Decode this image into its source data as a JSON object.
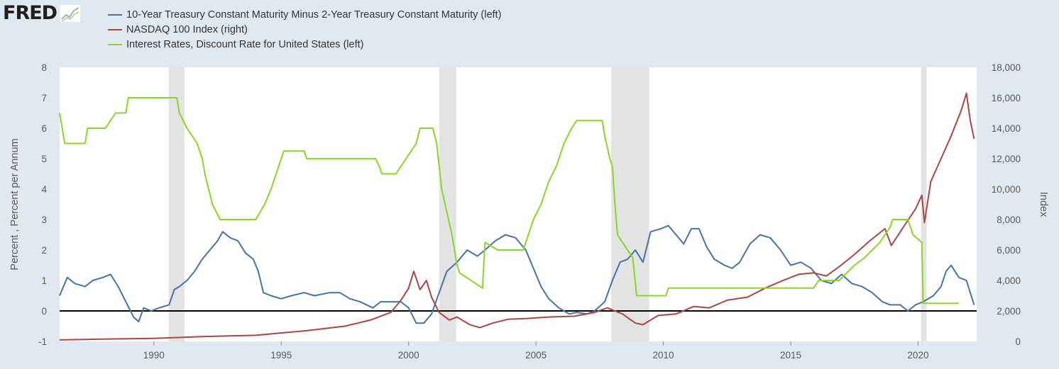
{
  "logo": {
    "text": "FRED",
    "icon": "fred-chart-line-icon"
  },
  "chart_data": {
    "type": "line",
    "title": "",
    "xlabel": "",
    "ylabel": "Percent , Percent per Annum",
    "ylabel_right": "Index",
    "x_range": [
      1986.3,
      2022.3
    ],
    "ylim": [
      -1,
      8
    ],
    "ylim_right": [
      0,
      18000
    ],
    "x_ticks": [
      "1990",
      "1995",
      "2000",
      "2005",
      "2010",
      "2015",
      "2020"
    ],
    "y_ticks": [
      "-1",
      "0",
      "1",
      "2",
      "3",
      "4",
      "5",
      "6",
      "7",
      "8"
    ],
    "y_ticks_right": [
      "0",
      "2,000",
      "4,000",
      "6,000",
      "8,000",
      "10,000",
      "12,000",
      "14,000",
      "16,000",
      "18,000"
    ],
    "zero_line": 0,
    "grid": "horizontal-off, vertical-off",
    "legend_position": "top-left",
    "recessions": [
      [
        1990.58,
        1991.2
      ],
      [
        2001.2,
        2001.87
      ],
      [
        2007.95,
        2009.45
      ],
      [
        2020.12,
        2020.33
      ]
    ],
    "series": [
      {
        "name": "10-Year Treasury Constant Maturity Minus 2-Year Treasury Constant Maturity (left)",
        "axis": "left",
        "color": "#4572a7",
        "points": [
          [
            1986.3,
            0.5
          ],
          [
            1986.6,
            1.1
          ],
          [
            1986.9,
            0.9
          ],
          [
            1987.3,
            0.8
          ],
          [
            1987.6,
            1.0
          ],
          [
            1988.0,
            1.1
          ],
          [
            1988.3,
            1.2
          ],
          [
            1988.6,
            0.8
          ],
          [
            1988.9,
            0.3
          ],
          [
            1989.2,
            -0.2
          ],
          [
            1989.4,
            -0.35
          ],
          [
            1989.6,
            0.1
          ],
          [
            1989.9,
            0.0
          ],
          [
            1990.2,
            0.1
          ],
          [
            1990.6,
            0.2
          ],
          [
            1990.8,
            0.7
          ],
          [
            1991.0,
            0.8
          ],
          [
            1991.3,
            1.0
          ],
          [
            1991.6,
            1.3
          ],
          [
            1991.9,
            1.7
          ],
          [
            1992.2,
            2.0
          ],
          [
            1992.5,
            2.3
          ],
          [
            1992.7,
            2.6
          ],
          [
            1993.0,
            2.4
          ],
          [
            1993.3,
            2.3
          ],
          [
            1993.6,
            1.9
          ],
          [
            1993.9,
            1.7
          ],
          [
            1994.1,
            1.3
          ],
          [
            1994.3,
            0.6
          ],
          [
            1994.6,
            0.5
          ],
          [
            1995.0,
            0.4
          ],
          [
            1995.4,
            0.5
          ],
          [
            1995.9,
            0.6
          ],
          [
            1996.3,
            0.5
          ],
          [
            1996.9,
            0.6
          ],
          [
            1997.3,
            0.6
          ],
          [
            1997.7,
            0.4
          ],
          [
            1998.1,
            0.3
          ],
          [
            1998.6,
            0.1
          ],
          [
            1998.9,
            0.3
          ],
          [
            1999.3,
            0.3
          ],
          [
            1999.7,
            0.3
          ],
          [
            2000.0,
            0.1
          ],
          [
            2000.3,
            -0.4
          ],
          [
            2000.6,
            -0.4
          ],
          [
            2000.9,
            -0.1
          ],
          [
            2001.2,
            0.6
          ],
          [
            2001.5,
            1.3
          ],
          [
            2001.9,
            1.6
          ],
          [
            2002.3,
            2.0
          ],
          [
            2002.7,
            1.8
          ],
          [
            2003.0,
            2.0
          ],
          [
            2003.4,
            2.3
          ],
          [
            2003.8,
            2.5
          ],
          [
            2004.2,
            2.4
          ],
          [
            2004.6,
            2.0
          ],
          [
            2004.9,
            1.4
          ],
          [
            2005.2,
            0.8
          ],
          [
            2005.5,
            0.4
          ],
          [
            2005.9,
            0.1
          ],
          [
            2006.3,
            -0.1
          ],
          [
            2006.6,
            -0.05
          ],
          [
            2007.0,
            -0.1
          ],
          [
            2007.3,
            0.0
          ],
          [
            2007.7,
            0.3
          ],
          [
            2008.0,
            1.0
          ],
          [
            2008.3,
            1.6
          ],
          [
            2008.6,
            1.7
          ],
          [
            2008.9,
            2.0
          ],
          [
            2009.2,
            1.6
          ],
          [
            2009.5,
            2.6
          ],
          [
            2009.9,
            2.7
          ],
          [
            2010.2,
            2.8
          ],
          [
            2010.5,
            2.5
          ],
          [
            2010.8,
            2.2
          ],
          [
            2011.1,
            2.7
          ],
          [
            2011.4,
            2.7
          ],
          [
            2011.7,
            2.1
          ],
          [
            2012.0,
            1.7
          ],
          [
            2012.4,
            1.5
          ],
          [
            2012.7,
            1.4
          ],
          [
            2013.0,
            1.6
          ],
          [
            2013.4,
            2.2
          ],
          [
            2013.8,
            2.5
          ],
          [
            2014.2,
            2.4
          ],
          [
            2014.6,
            2.0
          ],
          [
            2015.0,
            1.5
          ],
          [
            2015.4,
            1.6
          ],
          [
            2015.8,
            1.4
          ],
          [
            2016.2,
            1.0
          ],
          [
            2016.6,
            0.9
          ],
          [
            2017.0,
            1.2
          ],
          [
            2017.4,
            0.9
          ],
          [
            2017.8,
            0.8
          ],
          [
            2018.2,
            0.6
          ],
          [
            2018.6,
            0.3
          ],
          [
            2018.9,
            0.2
          ],
          [
            2019.3,
            0.2
          ],
          [
            2019.6,
            0.0
          ],
          [
            2019.9,
            0.2
          ],
          [
            2020.2,
            0.3
          ],
          [
            2020.6,
            0.5
          ],
          [
            2020.9,
            0.8
          ],
          [
            2021.1,
            1.3
          ],
          [
            2021.3,
            1.5
          ],
          [
            2021.6,
            1.1
          ],
          [
            2021.9,
            1.0
          ],
          [
            2022.2,
            0.2
          ]
        ]
      },
      {
        "name": "NASDAQ 100 Index (right)",
        "axis": "right",
        "color": "#aa4643",
        "points": [
          [
            1986.3,
            100
          ],
          [
            1988.0,
            150
          ],
          [
            1990.0,
            200
          ],
          [
            1992.0,
            320
          ],
          [
            1994.0,
            400
          ],
          [
            1996.0,
            700
          ],
          [
            1997.5,
            1000
          ],
          [
            1998.5,
            1400
          ],
          [
            1999.3,
            1900
          ],
          [
            1999.7,
            2700
          ],
          [
            2000.0,
            3500
          ],
          [
            2000.2,
            4600
          ],
          [
            2000.45,
            3400
          ],
          [
            2000.7,
            4000
          ],
          [
            2000.9,
            2900
          ],
          [
            2001.2,
            1900
          ],
          [
            2001.6,
            1400
          ],
          [
            2001.9,
            1600
          ],
          [
            2002.4,
            1100
          ],
          [
            2002.8,
            900
          ],
          [
            2003.3,
            1200
          ],
          [
            2003.9,
            1450
          ],
          [
            2004.6,
            1500
          ],
          [
            2005.5,
            1600
          ],
          [
            2006.5,
            1650
          ],
          [
            2007.3,
            1900
          ],
          [
            2007.8,
            2200
          ],
          [
            2008.4,
            1800
          ],
          [
            2008.9,
            1200
          ],
          [
            2009.2,
            1100
          ],
          [
            2009.8,
            1700
          ],
          [
            2010.5,
            1800
          ],
          [
            2011.2,
            2300
          ],
          [
            2011.8,
            2200
          ],
          [
            2012.5,
            2700
          ],
          [
            2013.3,
            2900
          ],
          [
            2014.0,
            3500
          ],
          [
            2014.7,
            4000
          ],
          [
            2015.3,
            4400
          ],
          [
            2015.9,
            4500
          ],
          [
            2016.4,
            4300
          ],
          [
            2016.9,
            4900
          ],
          [
            2017.5,
            5700
          ],
          [
            2018.1,
            6600
          ],
          [
            2018.7,
            7400
          ],
          [
            2018.95,
            6300
          ],
          [
            2019.5,
            7700
          ],
          [
            2019.9,
            8700
          ],
          [
            2020.15,
            9600
          ],
          [
            2020.25,
            7800
          ],
          [
            2020.5,
            10500
          ],
          [
            2020.9,
            12000
          ],
          [
            2021.3,
            13500
          ],
          [
            2021.7,
            15200
          ],
          [
            2021.9,
            16300
          ],
          [
            2022.05,
            14500
          ],
          [
            2022.2,
            13300
          ]
        ]
      },
      {
        "name": "Interest Rates, Discount Rate for United States (left)",
        "axis": "left",
        "color": "#89d629",
        "points": [
          [
            1986.3,
            6.5
          ],
          [
            1986.5,
            5.5
          ],
          [
            1987.3,
            5.5
          ],
          [
            1987.4,
            6.0
          ],
          [
            1988.1,
            6.0
          ],
          [
            1988.5,
            6.5
          ],
          [
            1988.9,
            6.5
          ],
          [
            1989.0,
            7.0
          ],
          [
            1990.9,
            7.0
          ],
          [
            1991.0,
            6.5
          ],
          [
            1991.3,
            6.0
          ],
          [
            1991.7,
            5.5
          ],
          [
            1991.9,
            5.0
          ],
          [
            1992.0,
            4.5
          ],
          [
            1992.3,
            3.5
          ],
          [
            1992.6,
            3.0
          ],
          [
            1993.0,
            3.0
          ],
          [
            1994.0,
            3.0
          ],
          [
            1994.35,
            3.5
          ],
          [
            1994.6,
            4.0
          ],
          [
            1994.9,
            4.75
          ],
          [
            1995.1,
            5.25
          ],
          [
            1995.9,
            5.25
          ],
          [
            1996.0,
            5.0
          ],
          [
            1998.7,
            5.0
          ],
          [
            1998.85,
            4.75
          ],
          [
            1998.95,
            4.5
          ],
          [
            1999.5,
            4.5
          ],
          [
            1999.7,
            4.75
          ],
          [
            1999.9,
            5.0
          ],
          [
            2000.1,
            5.25
          ],
          [
            2000.3,
            5.5
          ],
          [
            2000.45,
            6.0
          ],
          [
            2000.95,
            6.0
          ],
          [
            2001.1,
            5.5
          ],
          [
            2001.3,
            4.0
          ],
          [
            2001.5,
            3.25
          ],
          [
            2001.7,
            2.5
          ],
          [
            2001.9,
            1.5
          ],
          [
            2002.0,
            1.25
          ],
          [
            2002.9,
            0.75
          ],
          [
            2003.0,
            2.25
          ],
          [
            2003.5,
            2.0
          ],
          [
            2004.5,
            2.0
          ],
          [
            2004.6,
            2.25
          ],
          [
            2004.9,
            3.0
          ],
          [
            2005.2,
            3.5
          ],
          [
            2005.5,
            4.25
          ],
          [
            2005.8,
            4.75
          ],
          [
            2006.1,
            5.5
          ],
          [
            2006.4,
            6.0
          ],
          [
            2006.6,
            6.25
          ],
          [
            2007.6,
            6.25
          ],
          [
            2007.7,
            5.75
          ],
          [
            2007.9,
            5.0
          ],
          [
            2008.0,
            4.75
          ],
          [
            2008.1,
            3.5
          ],
          [
            2008.2,
            2.5
          ],
          [
            2008.4,
            2.25
          ],
          [
            2008.8,
            1.75
          ],
          [
            2008.95,
            0.5
          ],
          [
            2010.1,
            0.5
          ],
          [
            2010.2,
            0.75
          ],
          [
            2015.9,
            0.75
          ],
          [
            2016.1,
            1.0
          ],
          [
            2016.9,
            1.0
          ],
          [
            2017.2,
            1.25
          ],
          [
            2017.5,
            1.5
          ],
          [
            2017.9,
            1.75
          ],
          [
            2018.2,
            2.0
          ],
          [
            2018.5,
            2.25
          ],
          [
            2018.9,
            2.75
          ],
          [
            2019.0,
            3.0
          ],
          [
            2019.6,
            3.0
          ],
          [
            2019.7,
            2.75
          ],
          [
            2019.8,
            2.5
          ],
          [
            2020.15,
            2.25
          ],
          [
            2020.2,
            0.25
          ],
          [
            2021.6,
            0.25
          ]
        ]
      }
    ]
  }
}
